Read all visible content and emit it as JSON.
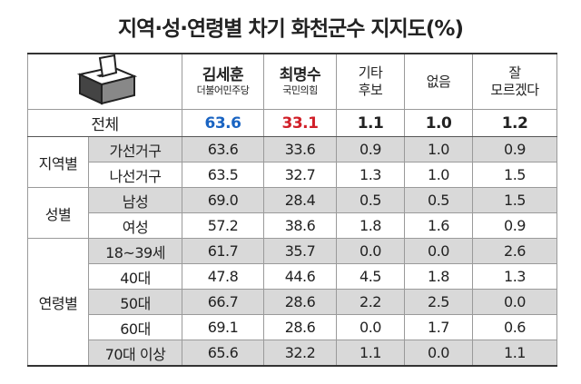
{
  "title": "지역·성·연령별 차기 화천군수 지지도(%)",
  "header": {
    "candidates": [
      {
        "name": "김세훈",
        "party": "더불어민주당"
      },
      {
        "name": "최명수",
        "party": "국민의힘"
      }
    ],
    "others": [
      [
        "기타",
        "후보"
      ],
      [
        "없음"
      ],
      [
        "잘",
        "모르겠다"
      ]
    ]
  },
  "total": {
    "label": "전체",
    "values": [
      "63.6",
      "33.1",
      "1.1",
      "1.0",
      "1.2"
    ]
  },
  "groups": [
    {
      "label": "지역별",
      "rows": [
        {
          "label": "가선거구",
          "values": [
            "63.6",
            "33.6",
            "0.9",
            "1.0",
            "0.9"
          ]
        },
        {
          "label": "나선거구",
          "values": [
            "63.5",
            "32.7",
            "1.3",
            "1.0",
            "1.5"
          ]
        }
      ]
    },
    {
      "label": "성별",
      "rows": [
        {
          "label": "남성",
          "values": [
            "69.0",
            "28.4",
            "0.5",
            "0.5",
            "1.5"
          ]
        },
        {
          "label": "여성",
          "values": [
            "57.2",
            "38.6",
            "1.8",
            "1.6",
            "0.9"
          ]
        }
      ]
    },
    {
      "label": "연령별",
      "rows": [
        {
          "label": "18~39세",
          "values": [
            "61.7",
            "35.7",
            "0.0",
            "0.0",
            "2.6"
          ]
        },
        {
          "label": "40대",
          "values": [
            "47.8",
            "44.6",
            "4.5",
            "1.8",
            "1.3"
          ]
        },
        {
          "label": "50대",
          "values": [
            "66.7",
            "28.6",
            "2.2",
            "2.5",
            "0.0"
          ]
        },
        {
          "label": "60대",
          "values": [
            "69.1",
            "28.6",
            "0.0",
            "1.7",
            "0.6"
          ]
        },
        {
          "label": "70대 이상",
          "values": [
            "65.6",
            "32.2",
            "1.1",
            "0.0",
            "1.1"
          ]
        }
      ]
    }
  ]
}
